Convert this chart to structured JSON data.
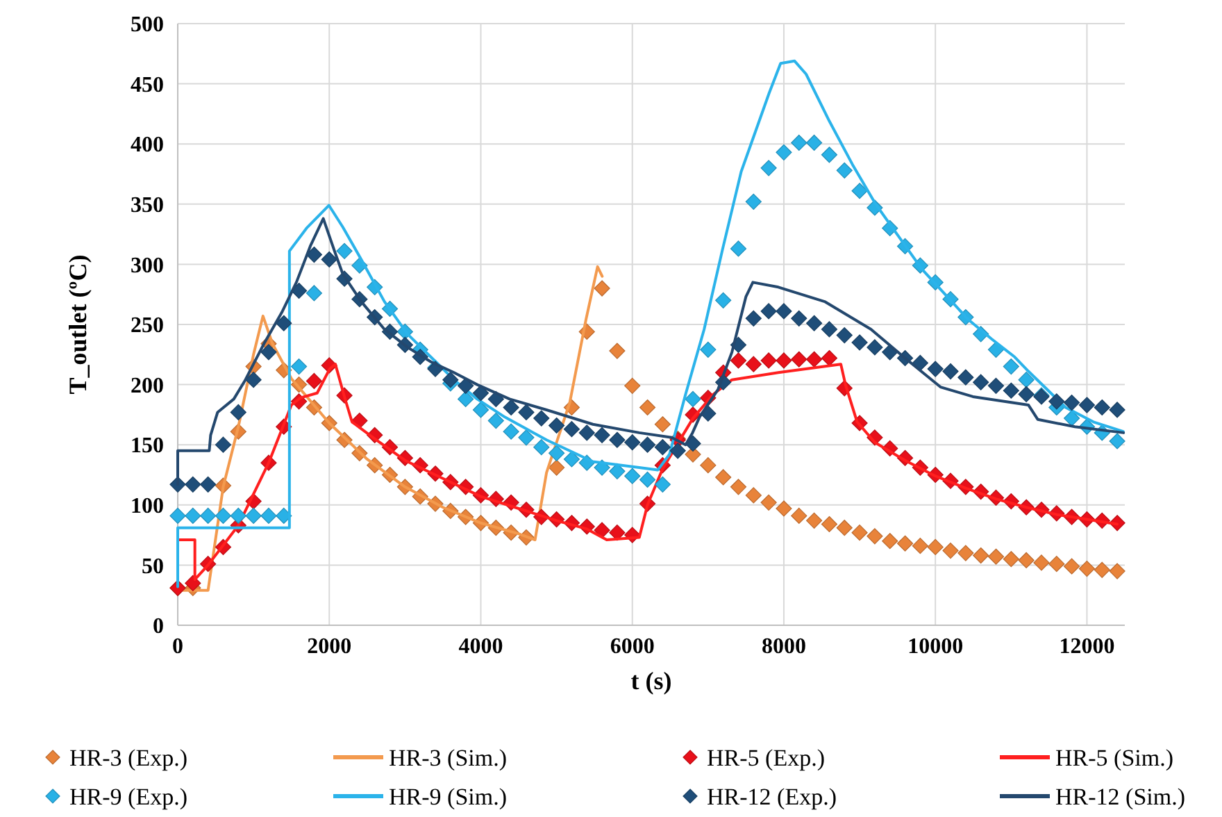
{
  "chart_data": {
    "type": "line",
    "xlabel": "t (s)",
    "ylabel": "T_outlet (ºC)",
    "xlim": [
      0,
      12500
    ],
    "xticks": [
      0,
      2000,
      4000,
      6000,
      8000,
      10000,
      12000
    ],
    "ylim": [
      0,
      500
    ],
    "yticks": [
      0,
      50,
      100,
      150,
      200,
      250,
      300,
      350,
      400,
      450,
      500
    ],
    "grid": true,
    "legend": "bottom",
    "series": [
      {
        "name": "HR-3 (Exp.)",
        "type": "scatter",
        "marker": "diamond",
        "color": "#e8833a",
        "x": [
          0,
          200,
          600,
          800,
          1000,
          1200,
          1400,
          1600,
          1800,
          2000,
          2200,
          2400,
          2600,
          2800,
          3000,
          3200,
          3400,
          3600,
          3800,
          4000,
          4200,
          4400,
          4600,
          5000,
          5200,
          5400,
          5600,
          5800,
          6000,
          6200,
          6400,
          6600,
          6800,
          7000,
          7200,
          7400,
          7600,
          7800,
          8000,
          8200,
          8400,
          8600,
          8800,
          9000,
          9200,
          9400,
          9600,
          9800,
          10000,
          10200,
          10400,
          10600,
          10800,
          11000,
          11200,
          11400,
          11600,
          11800,
          12000,
          12200,
          12400
        ],
        "values": [
          31,
          31,
          116,
          161,
          215,
          234,
          212,
          200,
          181,
          168,
          154,
          143,
          133,
          125,
          115,
          107,
          101,
          95,
          90,
          85,
          81,
          77,
          73,
          131,
          181,
          244,
          280,
          228,
          199,
          181,
          167,
          155,
          142,
          133,
          123,
          115,
          108,
          102,
          97,
          91,
          87,
          84,
          81,
          77,
          74,
          70,
          68,
          66,
          65,
          62,
          60,
          58,
          57,
          55,
          54,
          52,
          51,
          49,
          47,
          46,
          45
        ]
      },
      {
        "name": "HR-3 (Sim.)",
        "marker": "none",
        "color": "#f39a4e",
        "x": [
          0,
          400,
          600,
          800,
          1000,
          1125,
          1250,
          1500,
          2000,
          2500,
          3000,
          3500,
          4000,
          4500,
          4716,
          4868,
          5174,
          5388,
          5541,
          5602
        ],
        "values": [
          29,
          29,
          115,
          165,
          225,
          257,
          234,
          205,
          168,
          138,
          115,
          98,
          85,
          76,
          71,
          127,
          185,
          254,
          298,
          290
        ]
      },
      {
        "name": "HR-5 (Exp.)",
        "type": "scatter",
        "marker": "diamond",
        "color": "#e8101a",
        "x": [
          0,
          200,
          400,
          600,
          800,
          1000,
          1200,
          1400,
          1600,
          1800,
          2000,
          2200,
          2400,
          2600,
          2800,
          3000,
          3200,
          3400,
          3600,
          3800,
          4000,
          4200,
          4400,
          4600,
          4800,
          5000,
          5200,
          5400,
          5600,
          5800,
          6000,
          6200,
          6400,
          6600,
          6800,
          7000,
          7200,
          7400,
          7600,
          7800,
          8000,
          8200,
          8400,
          8600,
          8800,
          9000,
          9200,
          9400,
          9600,
          9800,
          10000,
          10200,
          10400,
          10600,
          10800,
          11000,
          11200,
          11400,
          11600,
          11800,
          12000,
          12200,
          12400
        ],
        "values": [
          31,
          35,
          51,
          65,
          83,
          103,
          135,
          165,
          186,
          203,
          216,
          191,
          170,
          158,
          148,
          139,
          133,
          126,
          119,
          115,
          108,
          105,
          102,
          96,
          90,
          88,
          85,
          82,
          79,
          77,
          75,
          101,
          133,
          154,
          175,
          189,
          210,
          220,
          217,
          220,
          220,
          221,
          221,
          222,
          197,
          168,
          156,
          147,
          139,
          131,
          125,
          120,
          115,
          111,
          106,
          103,
          98,
          96,
          93,
          90,
          88,
          87,
          85
        ]
      },
      {
        "name": "HR-5 (Sim.)",
        "marker": "none",
        "color": "#ff1f1f",
        "x": [
          0,
          226,
          226,
          400,
          800,
          1200,
          1500,
          1620,
          1840,
          2005,
          2080,
          2200,
          2300,
          2600,
          3000,
          3500,
          4000,
          4500,
          5000,
          5400,
          5662,
          6092,
          6200,
          6400,
          6800,
          7070,
          7315,
          7927,
          8752,
          8813,
          8967,
          9200,
          9600,
          10000,
          10400,
          10800,
          11200,
          11600,
          12000,
          12400
        ],
        "values": [
          71,
          71,
          38,
          50,
          83,
          135,
          183,
          189,
          193,
          213,
          217,
          190,
          169,
          155,
          137,
          122,
          107,
          97,
          87,
          80,
          71,
          73,
          100,
          130,
          172,
          192,
          204,
          210,
          217,
          200,
          169,
          152,
          137,
          124,
          114,
          105,
          98,
          92,
          88,
          84
        ]
      },
      {
        "name": "HR-9 (Exp.)",
        "type": "scatter",
        "marker": "diamond",
        "color": "#29b1e6",
        "x": [
          0,
          200,
          400,
          600,
          800,
          1000,
          1200,
          1400,
          1600,
          1800,
          2200,
          2400,
          2600,
          2800,
          3000,
          3200,
          3400,
          3600,
          3800,
          4000,
          4200,
          4400,
          4600,
          4800,
          5000,
          5200,
          5400,
          5600,
          5800,
          6000,
          6200,
          6400,
          6800,
          7000,
          7200,
          7400,
          7600,
          7800,
          8000,
          8200,
          8400,
          8600,
          8800,
          9000,
          9200,
          9400,
          9600,
          9800,
          10000,
          10200,
          10400,
          10600,
          10800,
          11000,
          11200,
          11400,
          11600,
          11800,
          12000,
          12200,
          12400
        ],
        "values": [
          91,
          91,
          91,
          91,
          91,
          91,
          91,
          91,
          215,
          276,
          311,
          299,
          281,
          263,
          244,
          229,
          214,
          201,
          188,
          179,
          170,
          161,
          156,
          148,
          143,
          138,
          135,
          131,
          128,
          124,
          121,
          117,
          188,
          229,
          270,
          313,
          352,
          380,
          393,
          401,
          401,
          391,
          378,
          361,
          347,
          330,
          315,
          299,
          285,
          271,
          256,
          242,
          229,
          215,
          204,
          191,
          181,
          172,
          165,
          160,
          153
        ]
      },
      {
        "name": "HR-9 (Sim.)",
        "marker": "none",
        "color": "#2bb3ea",
        "x": [
          0,
          0,
          1474,
          1474,
          1700,
          1995,
          2178,
          2422,
          2728,
          3033,
          3340,
          3646,
          3952,
          4317,
          4868,
          5480,
          6092,
          6336,
          6490,
          6703,
          6948,
          7193,
          7437,
          7804,
          7957,
          8140,
          8294,
          8600,
          8905,
          9211,
          9517,
          9822,
          10128,
          10435,
          10740,
          11046,
          11229,
          11474,
          11719,
          12086,
          12480
        ],
        "values": [
          32,
          81,
          81,
          311,
          330,
          349,
          331,
          304,
          269,
          242,
          223,
          204,
          188,
          173,
          154,
          136,
          131,
          129,
          142,
          192,
          246,
          313,
          377,
          442,
          467,
          469,
          458,
          419,
          383,
          350,
          323,
          296,
          275,
          254,
          238,
          223,
          211,
          196,
          181,
          169,
          161
        ]
      },
      {
        "name": "HR-12 (Exp.)",
        "type": "scatter",
        "marker": "diamond",
        "color": "#1f4e79",
        "x": [
          0,
          200,
          400,
          600,
          800,
          1000,
          1200,
          1400,
          1600,
          1800,
          2000,
          2200,
          2400,
          2600,
          2800,
          3000,
          3200,
          3400,
          3600,
          3800,
          4000,
          4200,
          4400,
          4600,
          4800,
          5000,
          5200,
          5400,
          5600,
          5800,
          6000,
          6200,
          6400,
          6600,
          6800,
          7000,
          7200,
          7400,
          7600,
          7800,
          8000,
          8200,
          8400,
          8600,
          8800,
          9000,
          9200,
          9400,
          9600,
          9800,
          10000,
          10200,
          10400,
          10600,
          10800,
          11000,
          11200,
          11400,
          11600,
          11800,
          12000,
          12200,
          12400
        ],
        "values": [
          117,
          117,
          117,
          150,
          177,
          204,
          227,
          251,
          278,
          308,
          304,
          288,
          271,
          256,
          244,
          233,
          223,
          213,
          204,
          199,
          193,
          188,
          181,
          177,
          172,
          166,
          163,
          160,
          158,
          154,
          152,
          150,
          148,
          145,
          151,
          176,
          202,
          233,
          255,
          261,
          261,
          255,
          251,
          246,
          241,
          235,
          231,
          227,
          222,
          218,
          213,
          211,
          206,
          202,
          199,
          195,
          192,
          190,
          186,
          185,
          183,
          181,
          179
        ]
      },
      {
        "name": "HR-12 (Sim.)",
        "marker": "none",
        "color": "#24486e",
        "x": [
          0,
          0,
          416,
          434,
          526,
          740,
          893,
          1138,
          1382,
          1566,
          1749,
          1921,
          2086,
          2178,
          2422,
          2728,
          3033,
          3340,
          3646,
          3952,
          4380,
          4868,
          5480,
          6092,
          6520,
          6703,
          6795,
          6887,
          7131,
          7315,
          7499,
          7591,
          7927,
          8538,
          9150,
          9600,
          10067,
          10495,
          11229,
          11352,
          11841,
          12483
        ],
        "values": [
          117,
          145,
          145,
          158,
          177,
          188,
          204,
          234,
          261,
          285,
          315,
          338,
          308,
          292,
          269,
          246,
          231,
          219,
          210,
          200,
          188,
          179,
          167,
          160,
          156,
          150,
          160,
          173,
          196,
          227,
          273,
          285,
          281,
          269,
          246,
          222,
          198,
          190,
          183,
          171,
          165,
          160
        ]
      }
    ]
  }
}
